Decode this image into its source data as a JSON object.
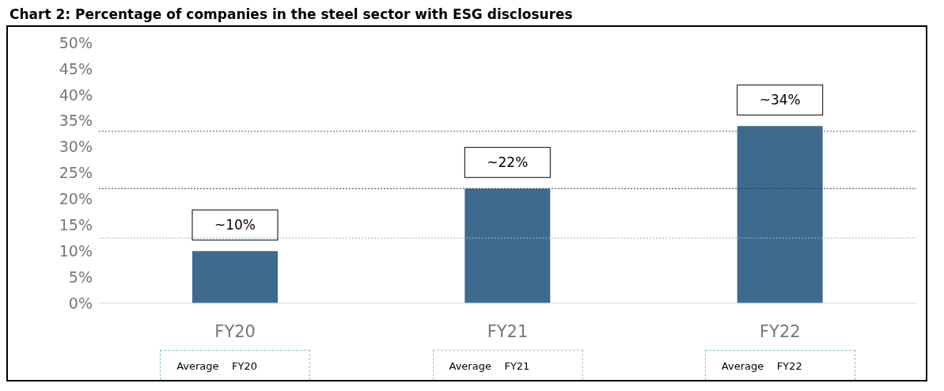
{
  "chart_data": {
    "type": "bar",
    "title": "Chart 2: Percentage of companies in the steel sector with ESG disclosures",
    "categories": [
      "FY20",
      "FY21",
      "FY22"
    ],
    "values": [
      10,
      22,
      34
    ],
    "color": "#3f6a8f",
    "value_labels": [
      "~10%",
      "~22%",
      "~34%"
    ],
    "ylim": [
      0,
      50
    ],
    "yticks": [
      {
        "value": 0,
        "label": "0%"
      },
      {
        "value": 5,
        "label": "5%"
      },
      {
        "value": 10,
        "label": "10%"
      },
      {
        "value": 15,
        "label": "15%"
      },
      {
        "value": 20,
        "label": "20%"
      },
      {
        "value": 25,
        "label": "25%"
      },
      {
        "value": 30,
        "label": "30%"
      },
      {
        "value": 35,
        "label": "35%"
      },
      {
        "value": 40,
        "label": "40%"
      },
      {
        "value": 45,
        "label": "45%"
      },
      {
        "value": 50,
        "label": "50%"
      }
    ],
    "ref_lines": [
      {
        "axis": "y",
        "value": 12.5,
        "color": "#7fc4c8",
        "line_style": "dotted"
      },
      {
        "axis": "y",
        "value": 22,
        "color": "#333333",
        "line_style": "dotted"
      },
      {
        "axis": "y",
        "value": 33,
        "color": "#555555",
        "line_style": "dotted"
      }
    ],
    "annotations": [
      "Average    FY20",
      "Average    FY21",
      "Average    FY22"
    ],
    "grid": false,
    "legend": false
  }
}
